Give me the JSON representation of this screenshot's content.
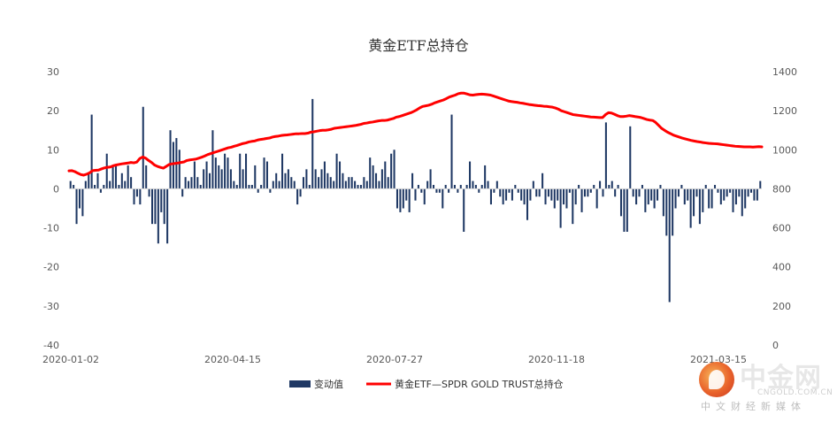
{
  "chart_data": {
    "type": "bar+line",
    "title": "黄金ETF总持仓",
    "x_tick_labels": [
      "2020-01-02",
      "2020-04-15",
      "2020-07-27",
      "2020-11-18",
      "2021-03-15"
    ],
    "left_axis": {
      "min": -40,
      "max": 30,
      "ticks": [
        30,
        20,
        10,
        0,
        -10,
        -20,
        -30,
        -40
      ]
    },
    "right_axis": {
      "min": 0,
      "max": 1400,
      "ticks": [
        1400,
        1200,
        1000,
        800,
        600,
        400,
        200,
        0
      ]
    },
    "legend_position": "bottom",
    "grid": false,
    "series": [
      {
        "name": "变动值",
        "type": "bar",
        "axis": "left",
        "color": "#1f3864",
        "values": [
          2,
          1,
          -9,
          -5,
          -7,
          2,
          4,
          19,
          1,
          4,
          -1,
          1,
          9,
          2,
          6,
          6,
          1,
          4,
          2,
          6,
          3,
          -4,
          -2,
          -4,
          21,
          6,
          -2,
          -9,
          -9,
          -14,
          -6,
          -9,
          -14,
          15,
          12,
          13,
          10,
          -2,
          3,
          2,
          3,
          7,
          3,
          1,
          5,
          7,
          4,
          15,
          8,
          6,
          5,
          9,
          8,
          5,
          2,
          1,
          9,
          5,
          9,
          1,
          1,
          6,
          -1,
          1,
          8,
          7,
          -1,
          2,
          4,
          2,
          9,
          4,
          5,
          3,
          2,
          -4,
          -2,
          3,
          5,
          1,
          23,
          5,
          3,
          5,
          7,
          4,
          3,
          2,
          9,
          7,
          4,
          2,
          3,
          3,
          2,
          1,
          1,
          3,
          2,
          8,
          6,
          4,
          2,
          5,
          7,
          3,
          9,
          10,
          -5,
          -6,
          -5,
          -3,
          -6,
          4,
          -3,
          1,
          -1,
          -4,
          2,
          5,
          1,
          -1,
          -1,
          -5,
          1,
          -1,
          19,
          1,
          -1,
          1,
          -11,
          1,
          7,
          2,
          1,
          -1,
          1,
          6,
          2,
          -4,
          -1,
          2,
          -2,
          -4,
          -3,
          -1,
          -3,
          1,
          -1,
          -3,
          -4,
          -8,
          -3,
          2,
          -2,
          -2,
          4,
          -4,
          -2,
          -3,
          -5,
          -3,
          -10,
          -4,
          -5,
          -1,
          -9,
          -4,
          1,
          -6,
          -2,
          -2,
          -1,
          1,
          -5,
          2,
          -2,
          17,
          1,
          2,
          -2,
          1,
          -7,
          -11,
          -11,
          16,
          -2,
          -4,
          -2,
          1,
          -6,
          -4,
          -3,
          -5,
          -3,
          1,
          -7,
          -12,
          -29,
          -12,
          -5,
          -2,
          1,
          -4,
          -3,
          -10,
          -7,
          -2,
          -9,
          -6,
          1,
          -5,
          -5,
          1,
          -1,
          -4,
          -3,
          -2,
          -1,
          -6,
          -4,
          -2,
          -7,
          -5,
          -2,
          -1,
          -3,
          -3,
          2
        ]
      },
      {
        "name": "黄金ETF—SPDR GOLD TRUST总持仓",
        "type": "line",
        "axis": "right",
        "color": "#ff0000",
        "values": [
          892,
          893,
          888,
          880,
          873,
          870,
          875,
          882,
          893,
          895,
          896,
          902,
          907,
          910,
          912,
          918,
          922,
          925,
          928,
          930,
          932,
          935,
          933,
          937,
          955,
          963,
          957,
          945,
          935,
          922,
          915,
          910,
          906,
          915,
          925,
          928,
          930,
          932,
          935,
          938,
          945,
          948,
          950,
          952,
          957,
          962,
          968,
          975,
          980,
          985,
          990,
          995,
          1000,
          1005,
          1010,
          1013,
          1018,
          1022,
          1027,
          1032,
          1035,
          1040,
          1043,
          1045,
          1050,
          1053,
          1055,
          1058,
          1060,
          1065,
          1068,
          1070,
          1073,
          1075,
          1076,
          1078,
          1080,
          1082,
          1082,
          1083,
          1083,
          1085,
          1090,
          1092,
          1095,
          1098,
          1100,
          1100,
          1102,
          1105,
          1110,
          1112,
          1114,
          1116,
          1118,
          1120,
          1122,
          1124,
          1127,
          1130,
          1135,
          1137,
          1140,
          1142,
          1145,
          1148,
          1150,
          1150,
          1152,
          1156,
          1160,
          1167,
          1170,
          1175,
          1180,
          1185,
          1190,
          1197,
          1205,
          1215,
          1222,
          1225,
          1228,
          1233,
          1240,
          1245,
          1250,
          1255,
          1262,
          1270,
          1275,
          1280,
          1287,
          1290,
          1290,
          1286,
          1281,
          1280,
          1282,
          1284,
          1285,
          1284,
          1282,
          1280,
          1275,
          1270,
          1265,
          1260,
          1255,
          1250,
          1247,
          1245,
          1243,
          1240,
          1238,
          1235,
          1232,
          1230,
          1228,
          1226,
          1225,
          1223,
          1222,
          1220,
          1218,
          1214,
          1208,
          1200,
          1195,
          1190,
          1185,
          1180,
          1178,
          1176,
          1174,
          1172,
          1170,
          1168,
          1167,
          1166,
          1165,
          1165,
          1180,
          1190,
          1188,
          1182,
          1175,
          1170,
          1170,
          1172,
          1175,
          1173,
          1170,
          1168,
          1165,
          1160,
          1155,
          1152,
          1150,
          1140,
          1125,
          1110,
          1100,
          1090,
          1083,
          1075,
          1070,
          1065,
          1060,
          1056,
          1052,
          1048,
          1045,
          1042,
          1040,
          1037,
          1035,
          1033,
          1032,
          1031,
          1030,
          1028,
          1026,
          1024,
          1022,
          1020,
          1018,
          1017,
          1016,
          1015,
          1015,
          1015,
          1014,
          1015,
          1016,
          1015
        ]
      }
    ]
  },
  "watermark": {
    "logo_name": "中金网",
    "domain": "CNGOLD.COM.CN",
    "subtitle": "中文财经新媒体"
  }
}
